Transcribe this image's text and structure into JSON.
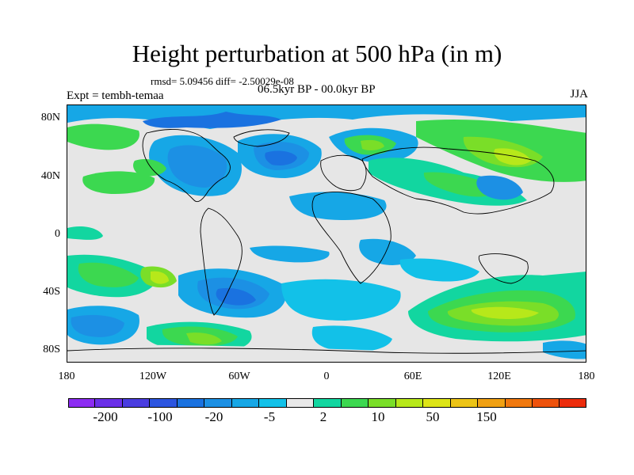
{
  "title": "Height perturbation at 500 hPa (in m)",
  "stats": "rmsd= 5.09456 diff= -2.50029e-08",
  "experiment": "Expt = tembh-temaa",
  "period": "06.5kyr BP - 00.0kyr BP",
  "season": "JJA",
  "axes": {
    "y_labels": [
      "80N",
      "40N",
      "0",
      "40S",
      "80S"
    ],
    "x_labels": [
      "180",
      "120W",
      "60W",
      "0",
      "60E",
      "120E",
      "180"
    ]
  },
  "colorbar": {
    "colors": [
      "#8c2cf2",
      "#6b30e8",
      "#4a3de0",
      "#2c55e0",
      "#1a72e0",
      "#1c90e4",
      "#16a7e6",
      "#12c1e8",
      "#e8e8e8",
      "#12d6a0",
      "#3cd850",
      "#7ade28",
      "#b7e81a",
      "#dde416",
      "#ecc416",
      "#f0a012",
      "#f0780e",
      "#ee520c",
      "#ec2c0c"
    ],
    "labels": [
      "-200",
      "-100",
      "-20",
      "-5",
      "2",
      "10",
      "50",
      "150"
    ]
  }
}
